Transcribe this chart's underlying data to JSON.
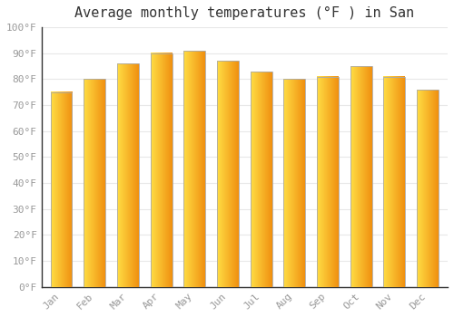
{
  "title": "Average monthly temperatures (°F ) in San",
  "months": [
    "Jan",
    "Feb",
    "Mar",
    "Apr",
    "May",
    "Jun",
    "Jul",
    "Aug",
    "Sep",
    "Oct",
    "Nov",
    "Dec"
  ],
  "values": [
    75,
    80,
    86,
    90,
    91,
    87,
    83,
    80,
    81,
    85,
    81,
    76
  ],
  "bar_color_left": "#FFCC44",
  "bar_color_right": "#F5A020",
  "bar_edge_color": "#AAAAAA",
  "background_color": "#FFFFFF",
  "grid_color": "#E8E8E8",
  "ylim": [
    0,
    100
  ],
  "yticks": [
    0,
    10,
    20,
    30,
    40,
    50,
    60,
    70,
    80,
    90,
    100
  ],
  "ytick_labels": [
    "0°F",
    "10°F",
    "20°F",
    "30°F",
    "40°F",
    "50°F",
    "60°F",
    "70°F",
    "80°F",
    "90°F",
    "100°F"
  ],
  "title_fontsize": 11,
  "tick_fontsize": 8,
  "tick_color": "#999999",
  "spine_color": "#333333",
  "bar_width": 0.65
}
